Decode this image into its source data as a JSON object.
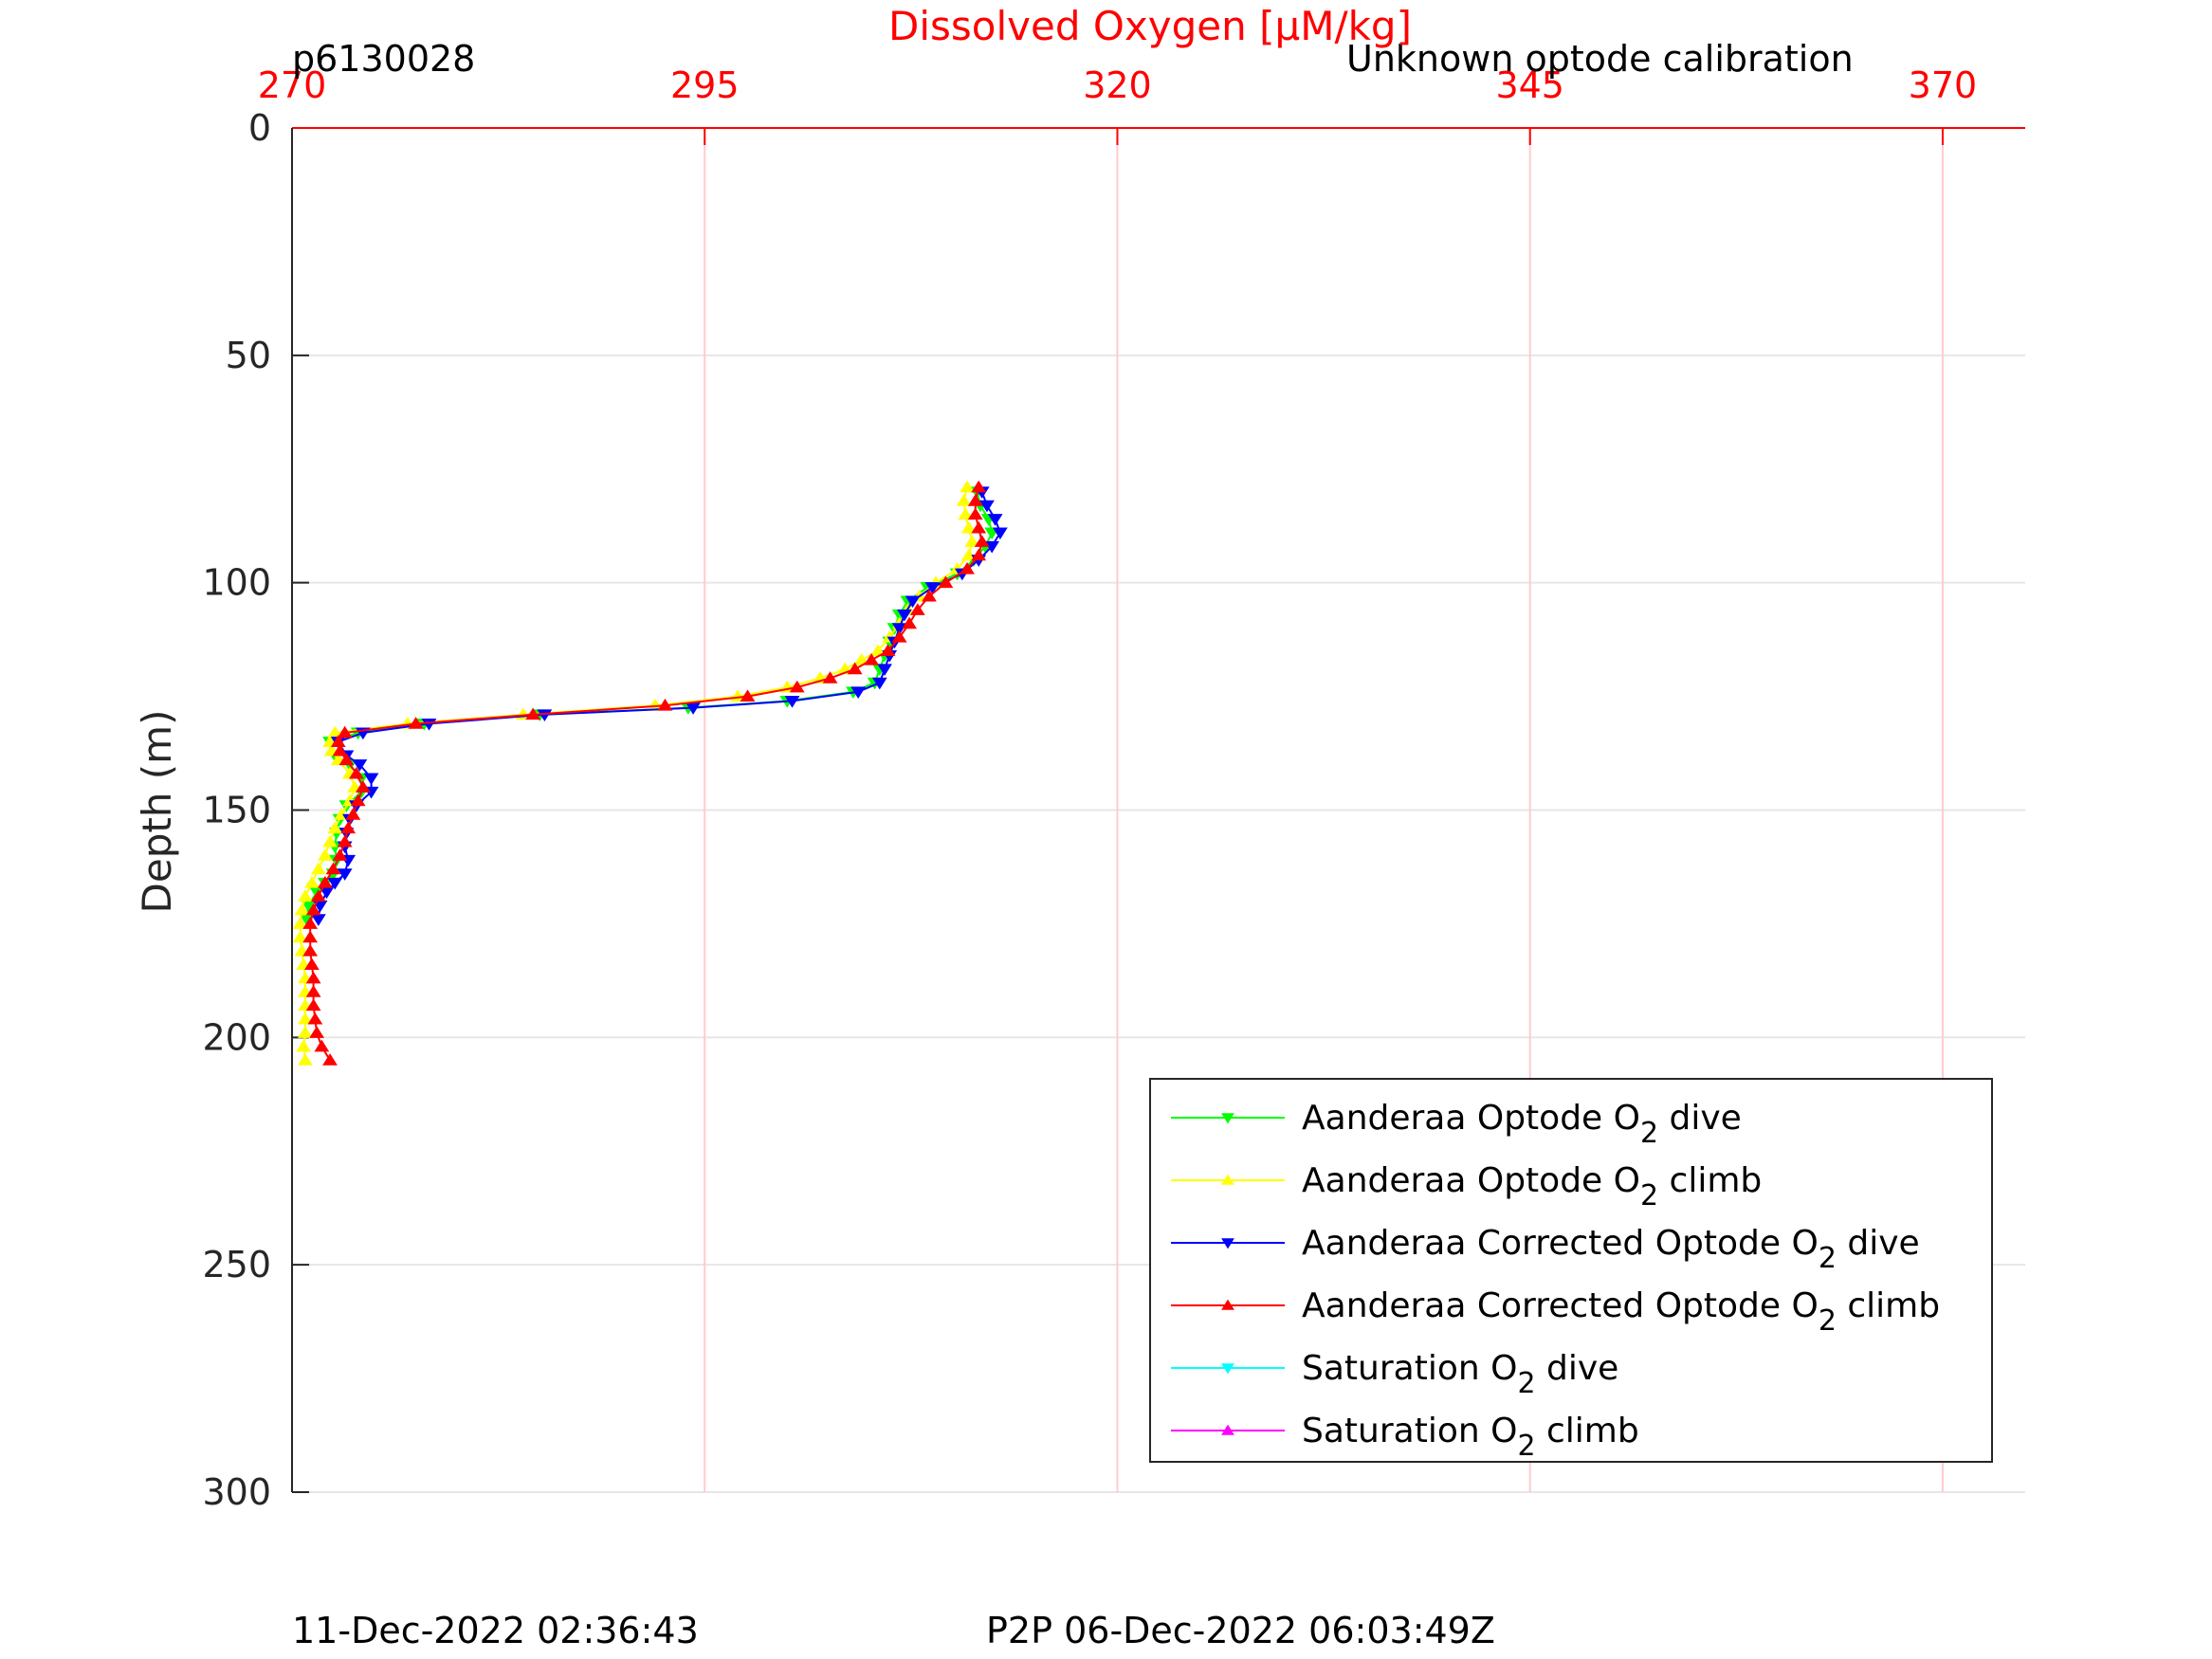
{
  "page": {
    "title_left": "p6130028",
    "title_right": "Unknown optode calibration",
    "footer_left": "11-Dec-2022 02:36:43",
    "footer_right": "P2P 06-Dec-2022 06:03:49Z"
  },
  "chart_data": {
    "type": "line",
    "xlabel": "Dissolved Oxygen [μM/kg]",
    "ylabel": "Depth (m)",
    "xlim": [
      270,
      375
    ],
    "ylim": [
      300,
      0
    ],
    "x_ticks": [
      270,
      295,
      320,
      345,
      370
    ],
    "y_ticks": [
      0,
      50,
      100,
      150,
      200,
      250,
      300
    ],
    "x_axis_position": "top",
    "y_reversed": true,
    "grid": true,
    "legend_position": "lower-right",
    "colors": {
      "axis_accent": "#ff0000",
      "grid": "#e6e6e6",
      "xgrid": "#ffcccc"
    },
    "series": [
      {
        "name": "Aanderaa Optode O2 dive",
        "color": "#00ff00",
        "marker": "down",
        "points": [
          [
            311.5,
            80
          ],
          [
            311.7,
            83
          ],
          [
            312.2,
            86
          ],
          [
            312.4,
            89
          ],
          [
            312,
            92
          ],
          [
            311.3,
            95
          ],
          [
            310.3,
            98
          ],
          [
            308.5,
            101
          ],
          [
            307.3,
            104
          ],
          [
            306.8,
            107
          ],
          [
            306.5,
            110
          ],
          [
            306.2,
            113
          ],
          [
            305.9,
            116
          ],
          [
            305.6,
            119
          ],
          [
            305.3,
            122
          ],
          [
            304,
            124
          ],
          [
            300,
            126
          ],
          [
            294,
            127.5
          ],
          [
            285,
            129
          ],
          [
            278,
            131
          ],
          [
            274,
            133
          ],
          [
            272.3,
            135
          ],
          [
            272.6,
            138
          ],
          [
            273.5,
            140
          ],
          [
            274.2,
            143
          ],
          [
            274.2,
            146
          ],
          [
            273.3,
            149
          ],
          [
            272.9,
            152
          ],
          [
            272.7,
            155
          ],
          [
            272.6,
            158
          ],
          [
            272.7,
            161
          ],
          [
            272.5,
            164
          ],
          [
            272,
            166
          ],
          [
            271.5,
            168
          ],
          [
            271,
            171
          ],
          [
            270.9,
            174
          ]
        ]
      },
      {
        "name": "Aanderaa Optode O2 climb",
        "color": "#ffff00",
        "marker": "up",
        "points": [
          [
            270.8,
            205
          ],
          [
            270.7,
            202
          ],
          [
            270.8,
            199
          ],
          [
            270.8,
            196
          ],
          [
            270.8,
            193
          ],
          [
            270.8,
            190
          ],
          [
            270.8,
            187
          ],
          [
            270.7,
            184
          ],
          [
            270.6,
            181
          ],
          [
            270.5,
            178
          ],
          [
            270.5,
            175
          ],
          [
            270.6,
            172
          ],
          [
            270.8,
            169
          ],
          [
            271.2,
            166
          ],
          [
            271.6,
            163
          ],
          [
            272,
            160
          ],
          [
            272.3,
            157
          ],
          [
            272.6,
            154
          ],
          [
            273,
            151
          ],
          [
            273.5,
            148
          ],
          [
            273.8,
            145
          ],
          [
            273.5,
            142
          ],
          [
            272.8,
            139
          ],
          [
            272.4,
            137
          ],
          [
            272.3,
            135
          ],
          [
            272.6,
            133
          ],
          [
            277,
            131
          ],
          [
            284,
            129
          ],
          [
            292,
            127
          ],
          [
            297,
            125
          ],
          [
            300,
            123
          ],
          [
            302,
            121
          ],
          [
            303.5,
            119
          ],
          [
            304.5,
            117
          ],
          [
            305.5,
            115
          ],
          [
            306.2,
            112
          ],
          [
            306.8,
            109
          ],
          [
            307.3,
            106
          ],
          [
            308,
            103
          ],
          [
            309,
            100
          ],
          [
            310.3,
            97
          ],
          [
            311,
            94
          ],
          [
            311.2,
            91
          ],
          [
            311,
            88
          ],
          [
            310.8,
            85
          ],
          [
            310.7,
            82
          ],
          [
            310.9,
            79
          ]
        ]
      },
      {
        "name": "Aanderaa Corrected Optode O2 dive",
        "color": "#0000ff",
        "marker": "down",
        "points": [
          [
            311.8,
            80
          ],
          [
            312.1,
            83
          ],
          [
            312.6,
            86
          ],
          [
            312.9,
            89
          ],
          [
            312.4,
            92
          ],
          [
            311.6,
            95
          ],
          [
            310.6,
            98
          ],
          [
            308.8,
            101
          ],
          [
            307.6,
            104
          ],
          [
            307.1,
            107
          ],
          [
            306.8,
            110
          ],
          [
            306.5,
            113
          ],
          [
            306.2,
            116
          ],
          [
            305.9,
            119
          ],
          [
            305.6,
            122
          ],
          [
            304.3,
            124
          ],
          [
            300.3,
            126
          ],
          [
            294.3,
            127.5
          ],
          [
            285.3,
            129
          ],
          [
            278.3,
            131
          ],
          [
            274.3,
            133
          ],
          [
            272.8,
            135
          ],
          [
            273.3,
            138
          ],
          [
            274.1,
            140
          ],
          [
            274.8,
            143
          ],
          [
            274.8,
            146
          ],
          [
            273.9,
            149
          ],
          [
            273.5,
            152
          ],
          [
            273.3,
            155
          ],
          [
            273.2,
            158
          ],
          [
            273.4,
            161
          ],
          [
            273.2,
            164
          ],
          [
            272.6,
            166
          ],
          [
            272.1,
            168
          ],
          [
            271.7,
            171
          ],
          [
            271.6,
            174
          ]
        ]
      },
      {
        "name": "Aanderaa Corrected Optode O2 climb",
        "color": "#ff0000",
        "marker": "up",
        "points": [
          [
            272.3,
            205
          ],
          [
            271.8,
            202
          ],
          [
            271.5,
            199
          ],
          [
            271.4,
            196
          ],
          [
            271.3,
            193
          ],
          [
            271.3,
            190
          ],
          [
            271.3,
            187
          ],
          [
            271.2,
            184
          ],
          [
            271.1,
            181
          ],
          [
            271.1,
            178
          ],
          [
            271.1,
            175
          ],
          [
            271.3,
            172
          ],
          [
            271.6,
            169
          ],
          [
            272,
            166
          ],
          [
            272.5,
            163
          ],
          [
            272.9,
            160
          ],
          [
            273.2,
            157
          ],
          [
            273.4,
            154
          ],
          [
            273.7,
            151
          ],
          [
            274,
            148
          ],
          [
            274.3,
            145
          ],
          [
            273.9,
            142
          ],
          [
            273.3,
            139
          ],
          [
            272.9,
            137
          ],
          [
            272.8,
            135
          ],
          [
            273.2,
            133
          ],
          [
            277.5,
            131
          ],
          [
            284.6,
            129
          ],
          [
            292.6,
            127
          ],
          [
            297.6,
            125
          ],
          [
            300.6,
            123
          ],
          [
            302.6,
            121
          ],
          [
            304.1,
            119
          ],
          [
            305.1,
            117
          ],
          [
            306.1,
            115
          ],
          [
            306.8,
            112
          ],
          [
            307.4,
            109
          ],
          [
            307.9,
            106
          ],
          [
            308.6,
            103
          ],
          [
            309.6,
            100
          ],
          [
            310.9,
            97
          ],
          [
            311.6,
            94
          ],
          [
            311.8,
            91
          ],
          [
            311.6,
            88
          ],
          [
            311.4,
            85
          ],
          [
            311.4,
            82
          ],
          [
            311.6,
            79
          ]
        ]
      },
      {
        "name": "Saturation O2 dive",
        "color": "#00ffff",
        "marker": "down",
        "points": []
      },
      {
        "name": "Saturation O2 climb",
        "color": "#ff00ff",
        "marker": "up",
        "points": []
      }
    ]
  }
}
